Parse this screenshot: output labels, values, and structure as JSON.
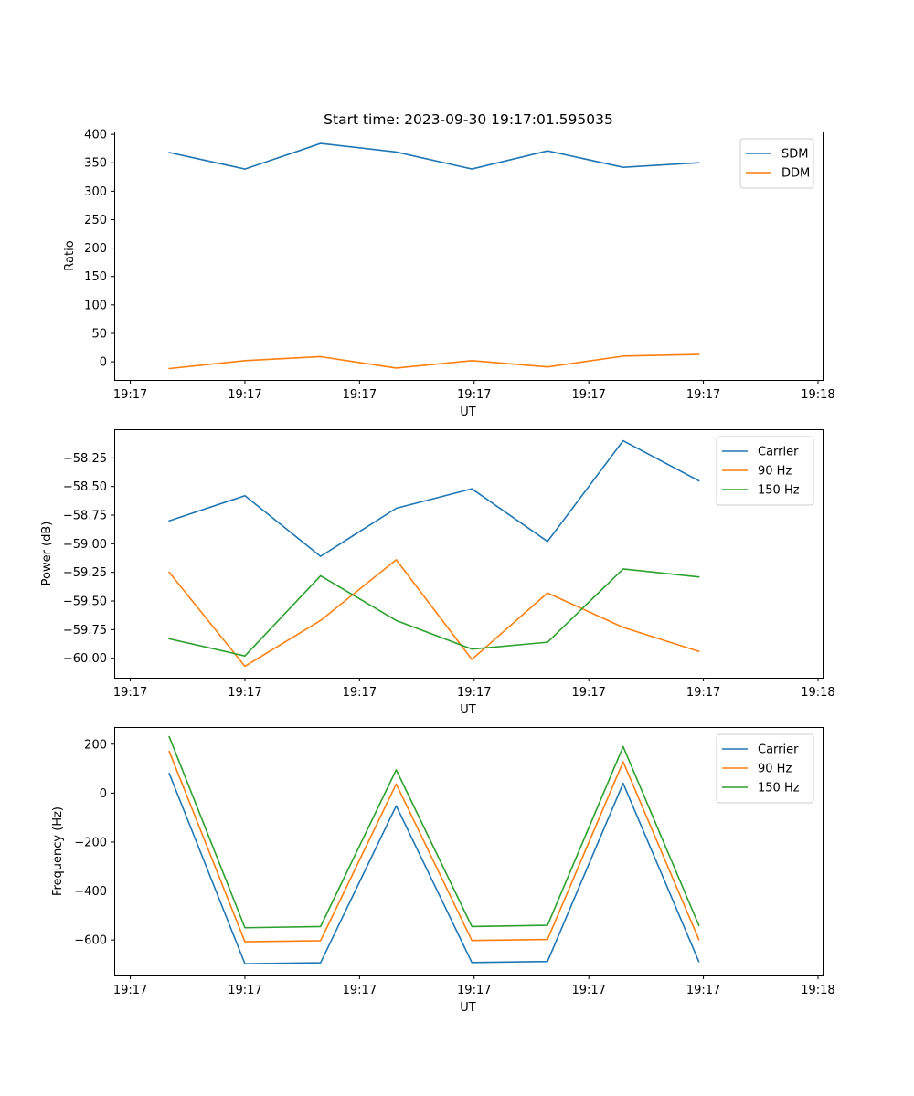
{
  "figure": {
    "title": "Start time: 2023-09-30 19:17:01.595035"
  },
  "chart_data": [
    {
      "type": "line",
      "ylabel": "Ratio",
      "xlabel": "UT",
      "ylim": [
        -32,
        405
      ],
      "yticks": [
        0,
        50,
        100,
        150,
        200,
        250,
        300,
        350,
        400
      ],
      "ytick_labels": [
        "0",
        "50",
        "100",
        "150",
        "200",
        "250",
        "300",
        "350",
        "400"
      ],
      "xlim": [
        -0.48,
        5.7
      ],
      "xticks": [
        -0.34,
        0.66,
        1.66,
        2.66,
        3.66,
        4.66,
        5.66
      ],
      "xtick_labels": [
        "19:17",
        "19:17",
        "19:17",
        "19:17",
        "19:17",
        "19:17",
        "19:18"
      ],
      "x": [
        0,
        0.66,
        1.32,
        1.98,
        2.64,
        3.3,
        3.96,
        4.62
      ],
      "legend_loc": "upper right",
      "series": [
        {
          "name": "SDM",
          "color": "#1f77b4",
          "values": [
            368,
            339,
            384,
            369,
            339,
            371,
            342,
            350
          ]
        },
        {
          "name": "DDM",
          "color": "#ff7f0e",
          "values": [
            -12,
            2,
            9,
            -11,
            2,
            -9,
            10,
            13
          ]
        }
      ]
    },
    {
      "type": "line",
      "ylabel": "Power (dB)",
      "xlabel": "UT",
      "ylim": [
        -60.17,
        -58.0
      ],
      "yticks": [
        -60.0,
        -59.75,
        -59.5,
        -59.25,
        -59.0,
        -58.75,
        -58.5,
        -58.25
      ],
      "ytick_labels": [
        "−60.00",
        "−59.75",
        "−59.50",
        "−59.25",
        "−59.00",
        "−58.75",
        "−58.50",
        "−58.25"
      ],
      "xlim": [
        -0.48,
        5.7
      ],
      "xticks": [
        -0.34,
        0.66,
        1.66,
        2.66,
        3.66,
        4.66,
        5.66
      ],
      "xtick_labels": [
        "19:17",
        "19:17",
        "19:17",
        "19:17",
        "19:17",
        "19:17",
        "19:18"
      ],
      "x": [
        0,
        0.66,
        1.32,
        1.98,
        2.64,
        3.3,
        3.96,
        4.62
      ],
      "legend_loc": "upper right",
      "series": [
        {
          "name": "Carrier",
          "color": "#1f77b4",
          "values": [
            -58.8,
            -58.58,
            -59.11,
            -58.69,
            -58.52,
            -58.98,
            -58.1,
            -58.45
          ]
        },
        {
          "name": "90 Hz",
          "color": "#ff7f0e",
          "values": [
            -59.25,
            -60.07,
            -59.67,
            -59.14,
            -60.01,
            -59.43,
            -59.73,
            -59.94
          ]
        },
        {
          "name": "150 Hz",
          "color": "#2ca02c",
          "values": [
            -59.83,
            -59.98,
            -59.28,
            -59.67,
            -59.92,
            -59.86,
            -59.22,
            -59.29
          ]
        }
      ]
    },
    {
      "type": "line",
      "ylabel": "Frequency (Hz)",
      "xlabel": "UT",
      "ylim": [
        -745,
        270
      ],
      "yticks": [
        -600,
        -400,
        -200,
        0,
        200
      ],
      "ytick_labels": [
        "−600",
        "−400",
        "−200",
        "0",
        "200"
      ],
      "xlim": [
        -0.48,
        5.7
      ],
      "xticks": [
        -0.34,
        0.66,
        1.66,
        2.66,
        3.66,
        4.66,
        5.66
      ],
      "xtick_labels": [
        "19:17",
        "19:17",
        "19:17",
        "19:17",
        "19:17",
        "19:17",
        "19:18"
      ],
      "x": [
        0,
        0.66,
        1.32,
        1.98,
        2.64,
        3.3,
        3.96,
        4.62
      ],
      "legend_loc": "upper right",
      "series": [
        {
          "name": "Carrier",
          "color": "#1f77b4",
          "values": [
            80,
            -697,
            -693,
            -52,
            -692,
            -688,
            40,
            -688
          ]
        },
        {
          "name": "90 Hz",
          "color": "#ff7f0e",
          "values": [
            170,
            -607,
            -603,
            37,
            -602,
            -598,
            128,
            -598
          ]
        },
        {
          "name": "150 Hz",
          "color": "#2ca02c",
          "values": [
            230,
            -550,
            -545,
            95,
            -545,
            -540,
            190,
            -540
          ]
        }
      ]
    }
  ]
}
